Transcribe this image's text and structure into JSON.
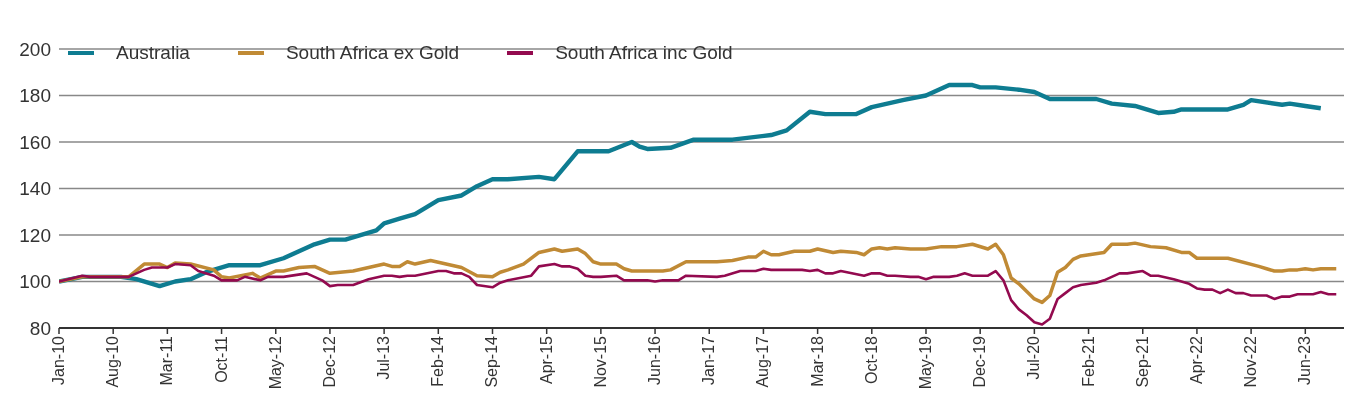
{
  "chart_data": {
    "type": "line",
    "legend": "top left",
    "grid": "y",
    "marker": "none",
    "line_style": "solid",
    "ylim": [
      80,
      200
    ],
    "yticks": [
      80,
      100,
      120,
      140,
      160,
      180,
      200
    ],
    "xlim": [
      "2010-01",
      "2023-11"
    ],
    "xticks": [
      {
        "value": "2010-01",
        "label": "Jan-10"
      },
      {
        "value": "2010-08",
        "label": "Aug-10"
      },
      {
        "value": "2011-03",
        "label": "Mar-11"
      },
      {
        "value": "2011-10",
        "label": "Oct-11"
      },
      {
        "value": "2012-05",
        "label": "May-12"
      },
      {
        "value": "2012-12",
        "label": "Dec-12"
      },
      {
        "value": "2013-07",
        "label": "Jul-13"
      },
      {
        "value": "2014-02",
        "label": "Feb-14"
      },
      {
        "value": "2014-09",
        "label": "Sep-14"
      },
      {
        "value": "2015-04",
        "label": "Apr-15"
      },
      {
        "value": "2015-11",
        "label": "Nov-15"
      },
      {
        "value": "2016-06",
        "label": "Jun-16"
      },
      {
        "value": "2017-01",
        "label": "Jan-17"
      },
      {
        "value": "2017-08",
        "label": "Aug-17"
      },
      {
        "value": "2018-03",
        "label": "Mar-18"
      },
      {
        "value": "2018-10",
        "label": "Oct-18"
      },
      {
        "value": "2019-05",
        "label": "May-19"
      },
      {
        "value": "2019-12",
        "label": "Dec-19"
      },
      {
        "value": "2020-07",
        "label": "Jul-20"
      },
      {
        "value": "2021-02",
        "label": "Feb-21"
      },
      {
        "value": "2021-09",
        "label": "Sep-21"
      },
      {
        "value": "2022-04",
        "label": "Apr-22"
      },
      {
        "value": "2022-11",
        "label": "Nov-22"
      },
      {
        "value": "2023-06",
        "label": "Jun-23"
      }
    ],
    "series": [
      {
        "name": "Australia",
        "color": "#0e7c91",
        "x": [
          "2010-01",
          "2010-04",
          "2010-09",
          "2010-11",
          "2011-02",
          "2011-04",
          "2011-06",
          "2011-08",
          "2011-11",
          "2012-03",
          "2012-06",
          "2012-08",
          "2012-10",
          "2012-12",
          "2013-02",
          "2013-06",
          "2013-07",
          "2013-09",
          "2013-11",
          "2014-02",
          "2014-05",
          "2014-07",
          "2014-09",
          "2014-11",
          "2015-03",
          "2015-05",
          "2015-08",
          "2015-12",
          "2016-03",
          "2016-04",
          "2016-05",
          "2016-08",
          "2016-11",
          "2017-04",
          "2017-09",
          "2017-11",
          "2018-02",
          "2018-04",
          "2018-08",
          "2018-10",
          "2019-02",
          "2019-05",
          "2019-08",
          "2019-11",
          "2019-12",
          "2020-02",
          "2020-05",
          "2020-07",
          "2020-09",
          "2021-03",
          "2021-05",
          "2021-08",
          "2021-11",
          "2022-01",
          "2022-02",
          "2022-08",
          "2022-10",
          "2022-11",
          "2023-03",
          "2023-04",
          "2023-06",
          "2023-08"
        ],
        "values": [
          100,
          102,
          102,
          101,
          98,
          100,
          101,
          104,
          107,
          107,
          110,
          113,
          116,
          118,
          118,
          122,
          125,
          127,
          129,
          135,
          137,
          141,
          144,
          144,
          145,
          144,
          156,
          156,
          160,
          158,
          157,
          157.5,
          161,
          161,
          163,
          165,
          173,
          172,
          172,
          175,
          178,
          180,
          184.5,
          184.5,
          183.5,
          183.5,
          182.5,
          181.5,
          178.5,
          178.5,
          176.5,
          175.5,
          172.5,
          173,
          174,
          174,
          176,
          178,
          176,
          176.5,
          175.5,
          174.5
        ]
      },
      {
        "name": "South Africa ex Gold",
        "color": "#c08a35",
        "x": [
          "2010-01",
          "2010-04",
          "2010-10",
          "2010-12",
          "2011-02",
          "2011-03",
          "2011-04",
          "2011-06",
          "2011-09",
          "2011-10",
          "2011-11",
          "2012-02",
          "2012-03",
          "2012-05",
          "2012-06",
          "2012-08",
          "2012-10",
          "2012-11",
          "2012-12",
          "2013-03",
          "2013-07",
          "2013-08",
          "2013-09",
          "2013-10",
          "2013-11",
          "2014-01",
          "2014-05",
          "2014-07",
          "2014-09",
          "2014-10",
          "2014-11",
          "2015-01",
          "2015-03",
          "2015-05",
          "2015-06",
          "2015-08",
          "2015-09",
          "2015-10",
          "2015-11",
          "2016-01",
          "2016-02",
          "2016-03",
          "2016-05",
          "2016-07",
          "2016-08",
          "2016-10",
          "2017-02",
          "2017-04",
          "2017-06",
          "2017-07",
          "2017-08",
          "2017-09",
          "2017-10",
          "2017-12",
          "2018-02",
          "2018-03",
          "2018-05",
          "2018-06",
          "2018-08",
          "2018-09",
          "2018-10",
          "2018-11",
          "2018-12",
          "2019-01",
          "2019-03",
          "2019-05",
          "2019-07",
          "2019-09",
          "2019-11",
          "2020-01",
          "2020-02",
          "2020-03",
          "2020-04",
          "2020-05",
          "2020-07",
          "2020-08",
          "2020-09",
          "2020-10",
          "2020-11",
          "2020-12",
          "2021-01",
          "2021-04",
          "2021-05",
          "2021-07",
          "2021-08",
          "2021-10",
          "2021-12",
          "2022-02",
          "2022-03",
          "2022-04",
          "2022-08",
          "2022-12",
          "2023-01",
          "2023-02",
          "2023-03",
          "2023-04",
          "2023-05",
          "2023-06",
          "2023-07",
          "2023-08",
          "2023-10"
        ],
        "values": [
          100,
          102,
          102,
          107.5,
          107.5,
          106,
          108,
          107.5,
          105,
          102,
          101.5,
          103.5,
          101.5,
          104.5,
          104.5,
          106,
          106.5,
          105,
          103.5,
          104.5,
          107.5,
          106.5,
          106.5,
          108.5,
          107.5,
          109,
          106,
          102.5,
          102,
          104,
          105,
          107.5,
          112.5,
          114,
          113,
          114,
          112,
          108.5,
          107.5,
          107.5,
          105.5,
          104.5,
          104.5,
          104.5,
          105,
          108.5,
          108.5,
          109,
          110.5,
          110.5,
          113,
          111.5,
          111.5,
          113,
          113,
          114,
          112.5,
          113,
          112.5,
          111.5,
          114,
          114.5,
          114,
          114.5,
          114,
          114,
          115,
          115,
          116,
          114,
          116,
          111.5,
          101.5,
          99,
          92.5,
          91,
          94,
          104,
          106,
          109.5,
          111,
          112.5,
          116,
          116,
          116.5,
          115,
          114.5,
          112.5,
          112.5,
          110,
          110,
          106.5,
          105.5,
          104.5,
          104.5,
          105,
          105,
          105.5,
          105,
          105.5,
          105.5
        ]
      },
      {
        "name": "South Africa inc Gold",
        "color": "#930a4f",
        "x": [
          "2010-01",
          "2010-04",
          "2010-05",
          "2010-10",
          "2010-12",
          "2011-01",
          "2011-03",
          "2011-04",
          "2011-06",
          "2011-07",
          "2011-09",
          "2011-10",
          "2011-12",
          "2012-01",
          "2012-03",
          "2012-04",
          "2012-06",
          "2012-09",
          "2012-11",
          "2012-12",
          "2013-01",
          "2013-03",
          "2013-05",
          "2013-07",
          "2013-08",
          "2013-09",
          "2013-10",
          "2013-11",
          "2014-02",
          "2014-03",
          "2014-04",
          "2014-05",
          "2014-06",
          "2014-07",
          "2014-09",
          "2014-10",
          "2014-11",
          "2015-02",
          "2015-03",
          "2015-05",
          "2015-06",
          "2015-07",
          "2015-08",
          "2015-09",
          "2015-10",
          "2015-11",
          "2016-01",
          "2016-02",
          "2016-05",
          "2016-06",
          "2016-07",
          "2016-09",
          "2016-10",
          "2017-02",
          "2017-03",
          "2017-05",
          "2017-07",
          "2017-08",
          "2017-09",
          "2018-01",
          "2018-02",
          "2018-03",
          "2018-04",
          "2018-05",
          "2018-06",
          "2018-09",
          "2018-10",
          "2018-11",
          "2018-12",
          "2019-01",
          "2019-03",
          "2019-04",
          "2019-05",
          "2019-06",
          "2019-08",
          "2019-09",
          "2019-10",
          "2019-11",
          "2020-01",
          "2020-02",
          "2020-03",
          "2020-04",
          "2020-05",
          "2020-06",
          "2020-07",
          "2020-08",
          "2020-09",
          "2020-10",
          "2020-11",
          "2020-12",
          "2021-01",
          "2021-03",
          "2021-04",
          "2021-06",
          "2021-07",
          "2021-09",
          "2021-10",
          "2021-11",
          "2022-01",
          "2022-03",
          "2022-04",
          "2022-05",
          "2022-06",
          "2022-07",
          "2022-08",
          "2022-09",
          "2022-10",
          "2022-11",
          "2023-01",
          "2023-02",
          "2023-03",
          "2023-04",
          "2023-05",
          "2023-07",
          "2023-08",
          "2023-09",
          "2023-10"
        ],
        "values": [
          100,
          102.5,
          102,
          102,
          105,
          106,
          106,
          107.5,
          107,
          104.5,
          102.5,
          100.5,
          100.5,
          102,
          100.5,
          102,
          102,
          103.5,
          100.5,
          98,
          98.5,
          98.5,
          101,
          102.5,
          102.5,
          102,
          102.5,
          102.5,
          104.5,
          104.5,
          103.5,
          103.5,
          102,
          98.5,
          97.5,
          99.5,
          100.5,
          102.5,
          106.5,
          107.5,
          106.5,
          106.5,
          105.5,
          102.5,
          102,
          102,
          102.5,
          100.5,
          100.5,
          100,
          100.5,
          100.5,
          102.5,
          102,
          102.5,
          104.5,
          104.5,
          105.5,
          105,
          105,
          104.5,
          105,
          103.5,
          103.5,
          104.5,
          102.5,
          103.5,
          103.5,
          102.5,
          102.5,
          102,
          102,
          101,
          102,
          102,
          102.5,
          103.5,
          102.5,
          102.5,
          104.5,
          100.5,
          92,
          88,
          85.5,
          82.5,
          81.5,
          84,
          92.5,
          95,
          97.5,
          98.5,
          99.5,
          100.5,
          103.5,
          103.5,
          104.5,
          102.5,
          102.5,
          101,
          99,
          97,
          96.5,
          96.5,
          95,
          96.5,
          95,
          95,
          94,
          94,
          92.5,
          93.5,
          93.5,
          94.5,
          94.5,
          95.5,
          94.5,
          94.5
        ]
      }
    ]
  }
}
